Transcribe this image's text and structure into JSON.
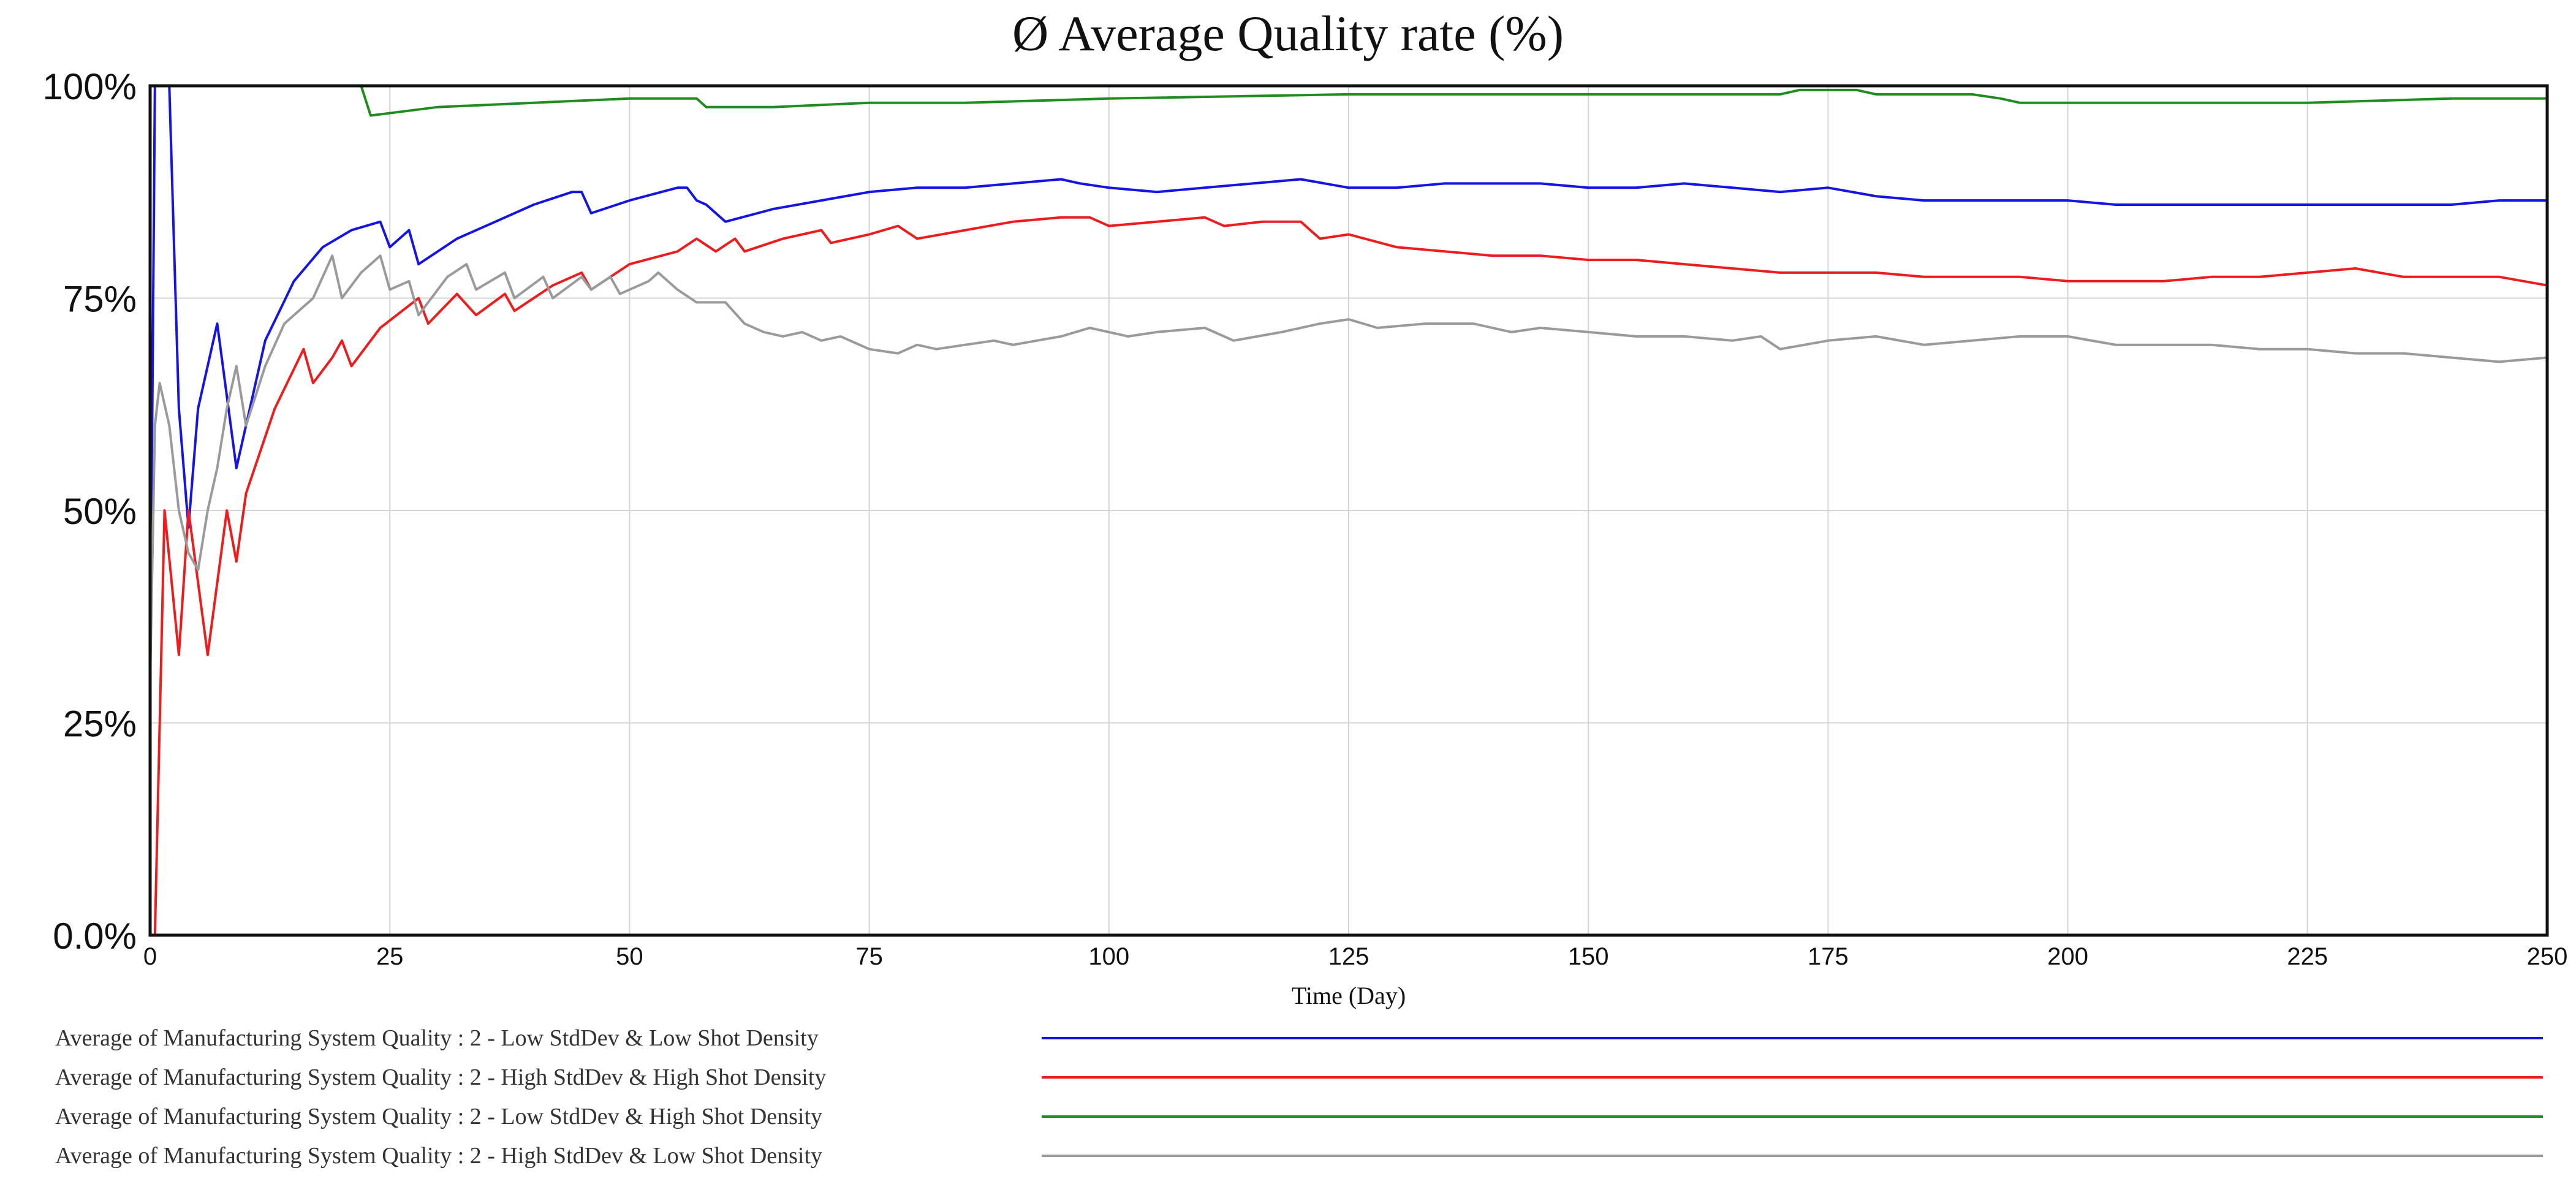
{
  "chart_data": {
    "type": "line",
    "title": "Ø Average Quality rate (%)",
    "xlabel": "Time (Day)",
    "ylabel": "",
    "xlim": [
      0,
      250
    ],
    "ylim": [
      0,
      100
    ],
    "x_ticks": [
      0,
      25,
      50,
      75,
      100,
      125,
      150,
      175,
      200,
      225,
      250
    ],
    "x_tick_labels": [
      "0",
      "25",
      "50",
      "75",
      "100",
      "125",
      "150",
      "175",
      "200",
      "225",
      "250"
    ],
    "y_ticks": [
      0,
      25,
      50,
      75,
      100
    ],
    "y_tick_labels": [
      "0.0%",
      "25%",
      "50%",
      "75%",
      "100%"
    ],
    "grid": true,
    "legend_position": "bottom",
    "series": [
      {
        "name": "Average of Manufacturing System Quality : 2 - Low StdDev & Low Shot Density",
        "color": "#1414e6",
        "points": [
          [
            0,
            30
          ],
          [
            0.5,
            100
          ],
          [
            2,
            100
          ],
          [
            3,
            62
          ],
          [
            4,
            48
          ],
          [
            5,
            62
          ],
          [
            7,
            72
          ],
          [
            9,
            55
          ],
          [
            12,
            70
          ],
          [
            15,
            77
          ],
          [
            18,
            81
          ],
          [
            21,
            83
          ],
          [
            24,
            84
          ],
          [
            25,
            81
          ],
          [
            27,
            83
          ],
          [
            28,
            79
          ],
          [
            32,
            82
          ],
          [
            36,
            84
          ],
          [
            40,
            86
          ],
          [
            44,
            87.5
          ],
          [
            45,
            87.5
          ],
          [
            46,
            85
          ],
          [
            50,
            86.5
          ],
          [
            55,
            88
          ],
          [
            56,
            88
          ],
          [
            57,
            86.5
          ],
          [
            58,
            86
          ],
          [
            60,
            84
          ],
          [
            65,
            85.5
          ],
          [
            70,
            86.5
          ],
          [
            75,
            87.5
          ],
          [
            80,
            88
          ],
          [
            85,
            88
          ],
          [
            90,
            88.5
          ],
          [
            95,
            89
          ],
          [
            97,
            88.5
          ],
          [
            100,
            88
          ],
          [
            105,
            87.5
          ],
          [
            110,
            88
          ],
          [
            115,
            88.5
          ],
          [
            120,
            89
          ],
          [
            125,
            88
          ],
          [
            130,
            88
          ],
          [
            135,
            88.5
          ],
          [
            140,
            88.5
          ],
          [
            145,
            88.5
          ],
          [
            150,
            88
          ],
          [
            155,
            88
          ],
          [
            160,
            88.5
          ],
          [
            165,
            88
          ],
          [
            170,
            87.5
          ],
          [
            175,
            88
          ],
          [
            180,
            87
          ],
          [
            185,
            86.5
          ],
          [
            190,
            86.5
          ],
          [
            195,
            86.5
          ],
          [
            200,
            86.5
          ],
          [
            205,
            86
          ],
          [
            210,
            86
          ],
          [
            215,
            86
          ],
          [
            220,
            86
          ],
          [
            225,
            86
          ],
          [
            230,
            86
          ],
          [
            235,
            86
          ],
          [
            240,
            86
          ],
          [
            245,
            86.5
          ],
          [
            250,
            86.5
          ]
        ]
      },
      {
        "name": "Average of Manufacturing System Quality : 2 - High StdDev & High Shot Density",
        "color": "#ee1c1c",
        "points": [
          [
            0.5,
            0
          ],
          [
            1.5,
            50
          ],
          [
            3,
            33
          ],
          [
            4,
            50
          ],
          [
            6,
            33
          ],
          [
            8,
            50
          ],
          [
            9,
            44
          ],
          [
            10,
            52
          ],
          [
            13,
            62
          ],
          [
            16,
            69
          ],
          [
            17,
            65
          ],
          [
            19,
            68
          ],
          [
            20,
            70
          ],
          [
            21,
            67
          ],
          [
            24,
            71.5
          ],
          [
            28,
            75
          ],
          [
            29,
            72
          ],
          [
            32,
            75.5
          ],
          [
            34,
            73
          ],
          [
            37,
            75.5
          ],
          [
            38,
            73.5
          ],
          [
            42,
            76.5
          ],
          [
            45,
            78
          ],
          [
            46,
            76
          ],
          [
            50,
            79
          ],
          [
            55,
            80.5
          ],
          [
            57,
            82
          ],
          [
            59,
            80.5
          ],
          [
            61,
            82
          ],
          [
            62,
            80.5
          ],
          [
            66,
            82
          ],
          [
            70,
            83
          ],
          [
            71,
            81.5
          ],
          [
            75,
            82.5
          ],
          [
            78,
            83.5
          ],
          [
            80,
            82
          ],
          [
            85,
            83
          ],
          [
            90,
            84
          ],
          [
            95,
            84.5
          ],
          [
            98,
            84.5
          ],
          [
            100,
            83.5
          ],
          [
            105,
            84
          ],
          [
            110,
            84.5
          ],
          [
            112,
            83.5
          ],
          [
            116,
            84
          ],
          [
            120,
            84
          ],
          [
            122,
            82
          ],
          [
            125,
            82.5
          ],
          [
            130,
            81
          ],
          [
            135,
            80.5
          ],
          [
            140,
            80
          ],
          [
            145,
            80
          ],
          [
            150,
            79.5
          ],
          [
            155,
            79.5
          ],
          [
            160,
            79
          ],
          [
            165,
            78.5
          ],
          [
            170,
            78
          ],
          [
            175,
            78
          ],
          [
            180,
            78
          ],
          [
            185,
            77.5
          ],
          [
            190,
            77.5
          ],
          [
            195,
            77.5
          ],
          [
            200,
            77
          ],
          [
            205,
            77
          ],
          [
            210,
            77
          ],
          [
            215,
            77.5
          ],
          [
            220,
            77.5
          ],
          [
            225,
            78
          ],
          [
            230,
            78.5
          ],
          [
            235,
            77.5
          ],
          [
            240,
            77.5
          ],
          [
            245,
            77.5
          ],
          [
            250,
            76.5
          ]
        ]
      },
      {
        "name": "Average of Manufacturing System Quality : 2 - Low StdDev & High Shot Density",
        "color": "#1e8c1e",
        "points": [
          [
            0,
            100
          ],
          [
            22,
            100
          ],
          [
            23,
            96.5
          ],
          [
            30,
            97.5
          ],
          [
            40,
            98
          ],
          [
            50,
            98.5
          ],
          [
            55,
            98.5
          ],
          [
            57,
            98.5
          ],
          [
            58,
            97.5
          ],
          [
            65,
            97.5
          ],
          [
            75,
            98
          ],
          [
            85,
            98
          ],
          [
            100,
            98.5
          ],
          [
            125,
            99
          ],
          [
            150,
            99
          ],
          [
            170,
            99
          ],
          [
            172,
            99.5
          ],
          [
            178,
            99.5
          ],
          [
            180,
            99
          ],
          [
            185,
            99
          ],
          [
            190,
            99
          ],
          [
            193,
            98.5
          ],
          [
            195,
            98
          ],
          [
            200,
            98
          ],
          [
            225,
            98
          ],
          [
            240,
            98.5
          ],
          [
            250,
            98.5
          ]
        ]
      },
      {
        "name": "Average of Manufacturing System Quality : 2 - High StdDev & Low Shot Density",
        "color": "#9a9a9a",
        "points": [
          [
            0,
            30
          ],
          [
            0.5,
            60
          ],
          [
            1,
            65
          ],
          [
            2,
            60
          ],
          [
            3,
            50
          ],
          [
            4,
            45
          ],
          [
            5,
            43
          ],
          [
            6,
            50
          ],
          [
            7,
            55
          ],
          [
            8,
            62
          ],
          [
            9,
            67
          ],
          [
            10,
            60
          ],
          [
            12,
            67
          ],
          [
            14,
            72
          ],
          [
            17,
            75
          ],
          [
            19,
            80
          ],
          [
            20,
            75
          ],
          [
            22,
            78
          ],
          [
            24,
            80
          ],
          [
            25,
            76
          ],
          [
            27,
            77
          ],
          [
            28,
            73
          ],
          [
            31,
            77.5
          ],
          [
            33,
            79
          ],
          [
            34,
            76
          ],
          [
            37,
            78
          ],
          [
            38,
            75
          ],
          [
            41,
            77.5
          ],
          [
            42,
            75
          ],
          [
            45,
            77.5
          ],
          [
            46,
            76
          ],
          [
            48,
            77.5
          ],
          [
            49,
            75.5
          ],
          [
            52,
            77
          ],
          [
            53,
            78
          ],
          [
            55,
            76
          ],
          [
            57,
            74.5
          ],
          [
            60,
            74.5
          ],
          [
            62,
            72
          ],
          [
            64,
            71
          ],
          [
            66,
            70.5
          ],
          [
            68,
            71
          ],
          [
            70,
            70
          ],
          [
            72,
            70.5
          ],
          [
            75,
            69
          ],
          [
            78,
            68.5
          ],
          [
            80,
            69.5
          ],
          [
            82,
            69
          ],
          [
            85,
            69.5
          ],
          [
            88,
            70
          ],
          [
            90,
            69.5
          ],
          [
            95,
            70.5
          ],
          [
            98,
            71.5
          ],
          [
            100,
            71
          ],
          [
            102,
            70.5
          ],
          [
            105,
            71
          ],
          [
            110,
            71.5
          ],
          [
            113,
            70
          ],
          [
            118,
            71
          ],
          [
            122,
            72
          ],
          [
            125,
            72.5
          ],
          [
            128,
            71.5
          ],
          [
            133,
            72
          ],
          [
            138,
            72
          ],
          [
            142,
            71
          ],
          [
            145,
            71.5
          ],
          [
            150,
            71
          ],
          [
            155,
            70.5
          ],
          [
            160,
            70.5
          ],
          [
            165,
            70
          ],
          [
            168,
            70.5
          ],
          [
            170,
            69
          ],
          [
            175,
            70
          ],
          [
            180,
            70.5
          ],
          [
            185,
            69.5
          ],
          [
            190,
            70
          ],
          [
            195,
            70.5
          ],
          [
            200,
            70.5
          ],
          [
            205,
            69.5
          ],
          [
            210,
            69.5
          ],
          [
            215,
            69.5
          ],
          [
            220,
            69
          ],
          [
            225,
            69
          ],
          [
            230,
            68.5
          ],
          [
            235,
            68.5
          ],
          [
            240,
            68
          ],
          [
            245,
            67.5
          ],
          [
            250,
            68
          ]
        ]
      }
    ]
  }
}
